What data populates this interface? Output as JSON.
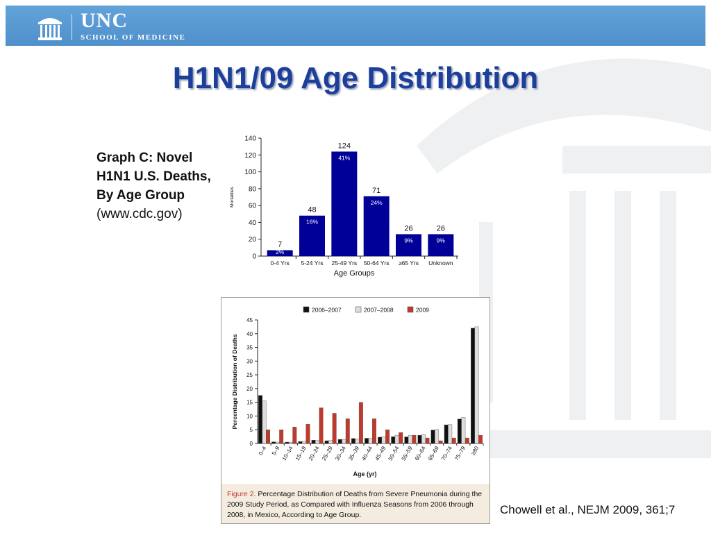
{
  "header": {
    "org_name": "UNC",
    "org_sub": "SCHOOL OF MEDICINE",
    "bar_color": "#5b9bd5"
  },
  "slide": {
    "title": "H1N1/09 Age Distribution",
    "graph_c_caption": "Graph C: Novel H1N1 U.S. Deaths, By Age Group",
    "graph_c_source": "(www.cdc.gov)",
    "citation": "Chowell et al., NEJM 2009, 361;7",
    "title_color": "#1d3f9c"
  },
  "figure2": {
    "label": "Figure 2.",
    "caption": "Percentage Distribution of Deaths from Severe Pneumonia during the 2009 Study Period, as Compared with Influenza Seasons from 2006 through 2008, in Mexico, According to Age Group."
  },
  "chart_data": [
    {
      "type": "bar",
      "categories": [
        "0-4 Yrs",
        "5-24 Yrs",
        "25-49 Yrs",
        "50-64 Yrs",
        "≥65  Yrs",
        "Unknown"
      ],
      "values": [
        7,
        48,
        124,
        71,
        26,
        26
      ],
      "value_labels": [
        "7",
        "48",
        "124",
        "71",
        "26",
        "26"
      ],
      "percent_labels": [
        "2%",
        "16%",
        "41%",
        "24%",
        "9%",
        "9%"
      ],
      "xlabel": "Age Groups",
      "ylabel": "Mortalities",
      "ylim": [
        0,
        140
      ],
      "yticks": [
        0,
        20,
        40,
        60,
        80,
        100,
        120,
        140
      ],
      "bar_color": "#000099",
      "grid": false
    },
    {
      "type": "bar",
      "categories": [
        "0–4",
        "5–9",
        "10–14",
        "15–19",
        "20–24",
        "25–29",
        "30–34",
        "35–39",
        "40–44",
        "45–49",
        "50–54",
        "55–59",
        "60–64",
        "65–69",
        "70–74",
        "75–79",
        "≥80"
      ],
      "series": [
        {
          "name": "2006–2007",
          "color": "#111111",
          "values": [
            17.5,
            0.6,
            0.5,
            0.7,
            1.2,
            1,
            1.5,
            1.8,
            1.9,
            2.3,
            2.5,
            2.4,
            3,
            4.9,
            6.8,
            8.9,
            42
          ]
        },
        {
          "name": "2007–2008",
          "color": "#dddddd",
          "values": [
            15.5,
            0.5,
            0.5,
            0.8,
            1.1,
            1.1,
            1.5,
            1.6,
            1.9,
            2.5,
            3,
            3,
            3.3,
            5.1,
            6.9,
            9.5,
            42.5
          ]
        },
        {
          "name": "2009",
          "color": "#c0392b",
          "values": [
            5,
            5,
            6,
            7,
            13,
            11,
            9,
            15,
            9,
            5,
            4,
            3,
            2,
            1,
            2,
            2,
            3
          ]
        }
      ],
      "xlabel": "Age (yr)",
      "ylabel": "Percentage Distribution of Deaths",
      "ylim": [
        0,
        45
      ],
      "yticks": [
        0,
        5,
        10,
        15,
        20,
        25,
        30,
        35,
        40,
        45
      ],
      "legend": "top",
      "grid": false
    }
  ]
}
